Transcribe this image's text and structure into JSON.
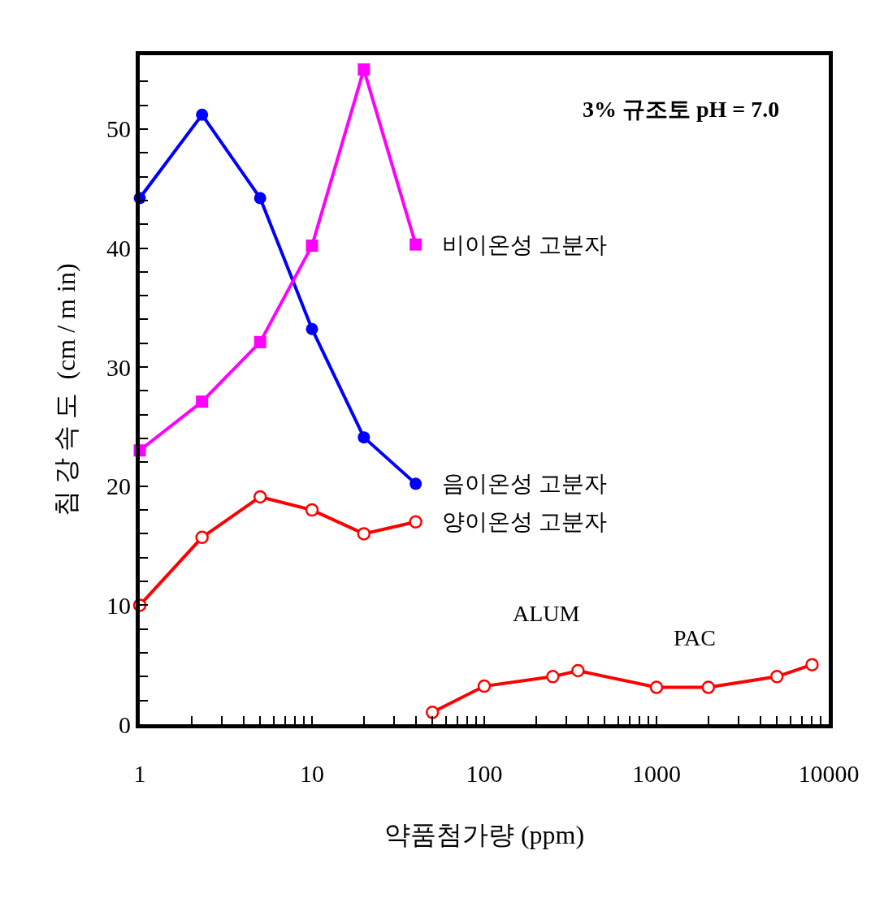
{
  "chart_data": {
    "type": "line",
    "xlabel": "약품첨가량 (ppm)",
    "ylabel": "침 강 속 도  (cm / m in)",
    "log": "x",
    "xlim": [
      1,
      10000
    ],
    "ylim": [
      0,
      56.2
    ],
    "xticks": [
      1,
      {
        "value": 2,
        "label": null
      },
      {
        "value": 3,
        "label": null
      },
      {
        "value": 4,
        "label": null
      },
      {
        "value": 5,
        "label": null
      },
      {
        "value": 6,
        "label": null
      },
      {
        "value": 7,
        "label": null
      },
      {
        "value": 8,
        "label": null
      },
      {
        "value": 9,
        "label": null
      },
      10,
      {
        "value": 20,
        "label": null
      },
      {
        "value": 30,
        "label": null
      },
      {
        "value": 40,
        "label": null
      },
      {
        "value": 50,
        "label": null
      },
      {
        "value": 60,
        "label": null
      },
      {
        "value": 70,
        "label": null
      },
      {
        "value": 80,
        "label": null
      },
      {
        "value": 90,
        "label": null
      },
      100,
      {
        "value": 200,
        "label": null
      },
      {
        "value": 300,
        "label": null
      },
      {
        "value": 400,
        "label": null
      },
      {
        "value": 500,
        "label": null
      },
      {
        "value": 600,
        "label": null
      },
      {
        "value": 700,
        "label": null
      },
      {
        "value": 800,
        "label": null
      },
      {
        "value": 900,
        "label": null
      },
      1000,
      {
        "value": 2000,
        "label": null
      },
      {
        "value": 3000,
        "label": null
      },
      {
        "value": 4000,
        "label": null
      },
      {
        "value": 5000,
        "label": null
      },
      {
        "value": 6000,
        "label": null
      },
      {
        "value": 7000,
        "label": null
      },
      {
        "value": 8000,
        "label": null
      },
      {
        "value": 9000,
        "label": null
      },
      10000
    ],
    "yticks": [
      0,
      {
        "value": 2,
        "label": null
      },
      {
        "value": 4,
        "label": null
      },
      {
        "value": 6,
        "label": null
      },
      {
        "value": 8,
        "label": null
      },
      10,
      {
        "value": 12,
        "label": null
      },
      {
        "value": 14,
        "label": null
      },
      {
        "value": 16,
        "label": null
      },
      {
        "value": 18,
        "label": null
      },
      20,
      {
        "value": 22,
        "label": null
      },
      {
        "value": 24,
        "label": null
      },
      {
        "value": 26,
        "label": null
      },
      {
        "value": 28,
        "label": null
      },
      30,
      {
        "value": 32,
        "label": null
      },
      {
        "value": 34,
        "label": null
      },
      {
        "value": 36,
        "label": null
      },
      {
        "value": 38,
        "label": null
      },
      40,
      {
        "value": 42,
        "label": null
      },
      {
        "value": 44,
        "label": null
      },
      {
        "value": 46,
        "label": null
      },
      {
        "value": 48,
        "label": null
      },
      50,
      {
        "value": 52,
        "label": null
      },
      {
        "value": 54,
        "label": null
      }
    ],
    "legend": false,
    "series": [
      {
        "name": "음이온성 고분자",
        "color": "#0000ff",
        "marker": "circle",
        "x": [
          1,
          2.3,
          5,
          10,
          20,
          40
        ],
        "values": [
          44.2,
          51.2,
          44.2,
          33.2,
          24.1,
          20.2
        ]
      },
      {
        "name": "비이온성 고분자",
        "color": "#ff00ff",
        "marker": "square",
        "x": [
          1,
          2.3,
          5,
          10,
          20,
          40
        ],
        "values": [
          23.0,
          27.1,
          32.1,
          40.2,
          55.0,
          40.3
        ]
      },
      {
        "name": "양이온성 고분자",
        "color": "#ff0000",
        "marker": "circle-open",
        "x": [
          1,
          2.3,
          5,
          10,
          20,
          40
        ],
        "values": [
          10.0,
          15.7,
          19.1,
          18.0,
          16.0,
          17.0
        ]
      },
      {
        "color": "#ff0000",
        "marker": "circle-open",
        "x": [
          50,
          100,
          250,
          350,
          1000,
          2000,
          5000,
          8000
        ],
        "values": [
          1.0,
          3.2,
          4.0,
          4.5,
          3.1,
          3.1,
          4.0,
          5.0
        ]
      }
    ],
    "annotations": [
      "3% 규조토 pH = 7.0",
      "ALUM",
      "PAC"
    ]
  }
}
